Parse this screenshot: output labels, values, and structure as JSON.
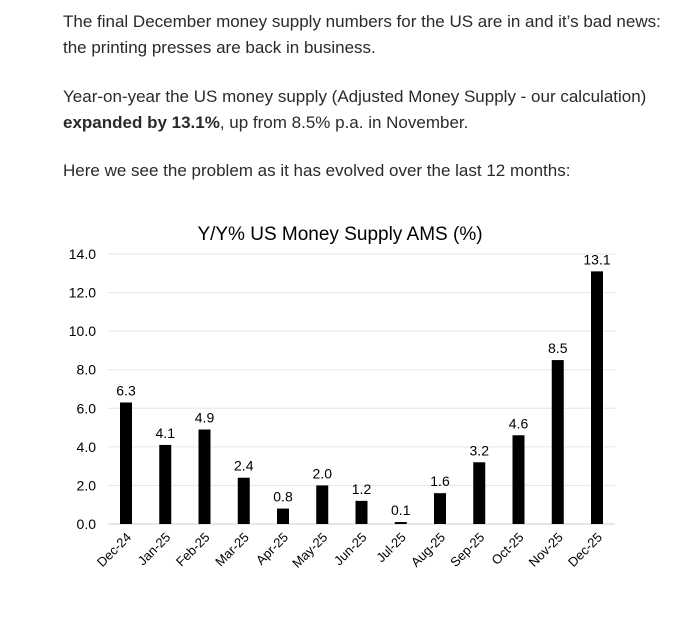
{
  "paragraphs": [
    {
      "text": "The final December money supply numbers for the US are in and it’s bad news: the printing presses are back in business."
    },
    {
      "pre": "Year-on-year the US money supply (Adjusted Money Supply - our calculation) ",
      "bold": "expanded by 13.1%",
      "post": ", up from 8.5% p.a. in November."
    },
    {
      "text": "Here we see the problem as it has evolved over the last 12 months:"
    }
  ],
  "chart_data": {
    "type": "bar",
    "title": "Y/Y% US Money Supply AMS (%)",
    "categories": [
      "Dec-24",
      "Jan-25",
      "Feb-25",
      "Mar-25",
      "Apr-25",
      "May-25",
      "Jun-25",
      "Jul-25",
      "Aug-25",
      "Sep-25",
      "Oct-25",
      "Nov-25",
      "Dec-25"
    ],
    "values": [
      6.3,
      4.1,
      4.9,
      2.4,
      0.8,
      2.0,
      1.2,
      0.1,
      1.6,
      3.2,
      4.6,
      8.5,
      13.1
    ],
    "data_labels": [
      "6.3",
      "4.1",
      "4.9",
      "2.4",
      "0.8",
      "2.0",
      "1.2",
      "0.1",
      "1.6",
      "3.2",
      "4.6",
      "8.5",
      "13.1"
    ],
    "yticks": [
      "0.0",
      "2.0",
      "4.0",
      "6.0",
      "8.0",
      "10.0",
      "12.0",
      "14.0"
    ],
    "ylim": [
      0,
      14
    ],
    "xlabel": "",
    "ylabel": "",
    "grid": true,
    "bar_color": "#000000"
  }
}
